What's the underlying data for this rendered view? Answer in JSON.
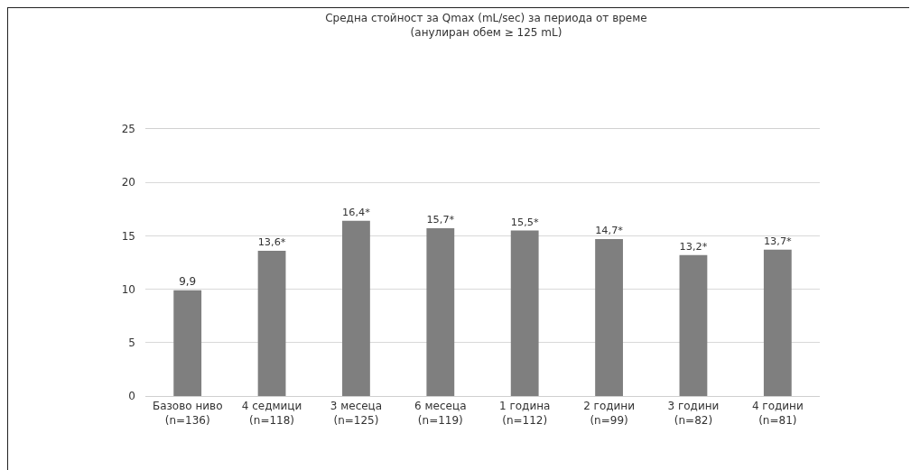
{
  "chart_data": {
    "type": "bar",
    "title": "Средна стойност за Qmax (mL/sec) за периода от време\n(анулиран обем ≥ 125 mL)",
    "categories": [
      "Базово ниво\n(n=136)",
      "4 седмици\n(n=118)",
      "3 месеца\n(n=125)",
      "6 месеца\n(n=119)",
      "1 година\n(n=112)",
      "2 години\n(n=99)",
      "3 години\n(n=82)",
      "4 години\n(n=81)"
    ],
    "values": [
      9.9,
      13.6,
      16.4,
      15.7,
      15.5,
      14.7,
      13.2,
      13.7
    ],
    "value_labels": [
      "9,9",
      "13,6*",
      "16,4*",
      "15,7*",
      "15,5*",
      "14,7*",
      "13,2*",
      "13,7*"
    ],
    "color": "#7f7f7f",
    "ylim": [
      0,
      25
    ],
    "yticks": [
      0,
      5,
      10,
      15,
      20,
      25
    ],
    "grid": "y"
  }
}
